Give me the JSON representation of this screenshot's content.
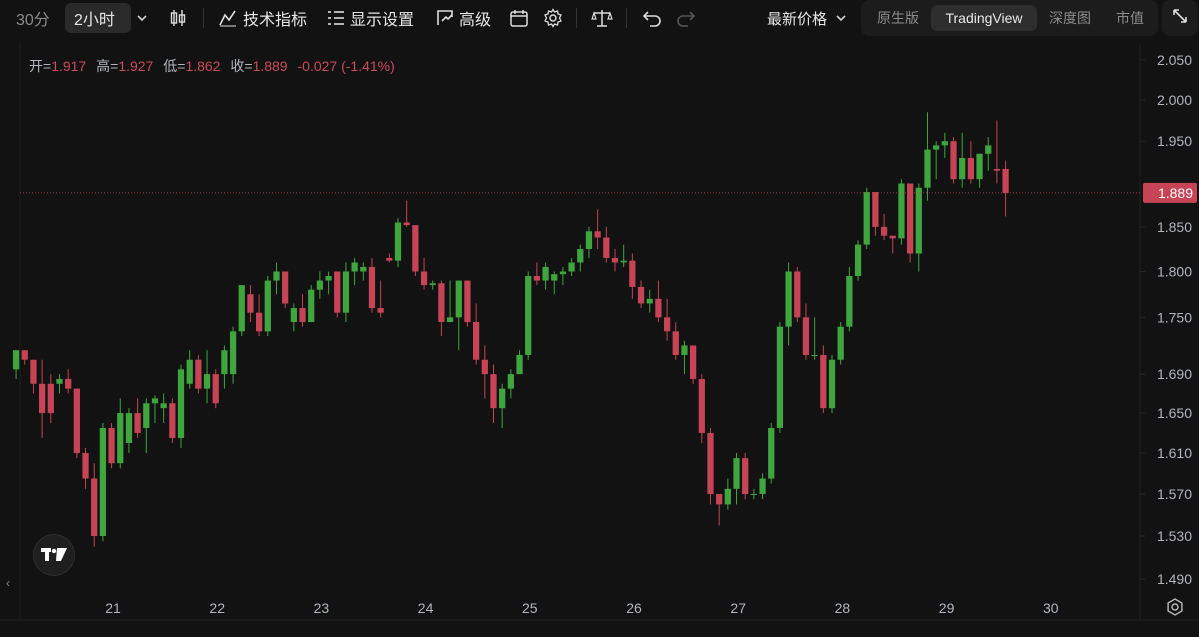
{
  "toolbar": {
    "tf_30m": "30分",
    "tf_2h": "2小时",
    "indicators": "技术指标",
    "display_settings": "显示设置",
    "advanced": "高级",
    "price_mode": "最新价格",
    "views": [
      "原生版",
      "TradingView",
      "深度图",
      "市值"
    ],
    "active_view": "TradingView"
  },
  "ohlc": {
    "open_label": "开=",
    "open": "1.917",
    "high_label": "高=",
    "high": "1.927",
    "low_label": "低=",
    "low": "1.862",
    "close_label": "收=",
    "close": "1.889",
    "change": "-0.027",
    "change_pct": "(-1.41%)"
  },
  "colors": {
    "up": "#3fa53f",
    "down": "#c64455",
    "last_price_label_bg": "#c64455",
    "background": "#121212"
  },
  "price_axis": {
    "ticks": [
      "2.050",
      "2.000",
      "1.950",
      "1.850",
      "1.800",
      "1.750",
      "1.690",
      "1.650",
      "1.610",
      "1.570",
      "1.530",
      "1.490"
    ],
    "last_price": "1.889"
  },
  "time_axis": {
    "ticks": [
      "21",
      "22",
      "23",
      "24",
      "25",
      "26",
      "27",
      "28",
      "29",
      "30"
    ]
  },
  "chart_data": {
    "type": "candlestick",
    "interval": "2小时",
    "y_scale": "log",
    "ylim": [
      1.46,
      2.07
    ],
    "x_domain_days": [
      20.05,
      30.75
    ],
    "bar_days": 0.0833,
    "start_day": 20.07,
    "ohlc": [
      [
        1.695,
        1.715,
        1.685,
        1.715
      ],
      [
        1.715,
        1.715,
        1.7,
        1.705
      ],
      [
        1.705,
        1.705,
        1.67,
        1.68
      ],
      [
        1.68,
        1.705,
        1.625,
        1.65
      ],
      [
        1.68,
        1.69,
        1.64,
        1.65
      ],
      [
        1.68,
        1.69,
        1.67,
        1.685
      ],
      [
        1.685,
        1.695,
        1.67,
        1.675
      ],
      [
        1.675,
        1.675,
        1.605,
        1.61
      ],
      [
        1.61,
        1.615,
        1.575,
        1.585
      ],
      [
        1.585,
        1.6,
        1.52,
        1.53
      ],
      [
        1.53,
        1.64,
        1.525,
        1.635
      ],
      [
        1.635,
        1.64,
        1.595,
        1.6
      ],
      [
        1.6,
        1.665,
        1.595,
        1.65
      ],
      [
        1.62,
        1.655,
        1.61,
        1.65
      ],
      [
        1.65,
        1.665,
        1.625,
        1.63
      ],
      [
        1.635,
        1.665,
        1.61,
        1.66
      ],
      [
        1.66,
        1.668,
        1.64,
        1.665
      ],
      [
        1.655,
        1.67,
        1.64,
        1.66
      ],
      [
        1.66,
        1.665,
        1.62,
        1.625
      ],
      [
        1.625,
        1.7,
        1.615,
        1.695
      ],
      [
        1.68,
        1.715,
        1.675,
        1.705
      ],
      [
        1.705,
        1.71,
        1.67,
        1.675
      ],
      [
        1.675,
        1.715,
        1.66,
        1.69
      ],
      [
        1.69,
        1.695,
        1.655,
        1.66
      ],
      [
        1.69,
        1.72,
        1.675,
        1.715
      ],
      [
        1.69,
        1.74,
        1.68,
        1.735
      ],
      [
        1.735,
        1.785,
        1.73,
        1.785
      ],
      [
        1.775,
        1.785,
        1.745,
        1.755
      ],
      [
        1.755,
        1.775,
        1.73,
        1.735
      ],
      [
        1.735,
        1.795,
        1.73,
        1.79
      ],
      [
        1.79,
        1.81,
        1.775,
        1.8
      ],
      [
        1.8,
        1.8,
        1.76,
        1.765
      ],
      [
        1.745,
        1.765,
        1.735,
        1.76
      ],
      [
        1.76,
        1.775,
        1.74,
        1.745
      ],
      [
        1.745,
        1.785,
        1.745,
        1.78
      ],
      [
        1.78,
        1.8,
        1.77,
        1.79
      ],
      [
        1.79,
        1.8,
        1.775,
        1.795
      ],
      [
        1.8,
        1.8,
        1.75,
        1.755
      ],
      [
        1.755,
        1.81,
        1.745,
        1.8
      ],
      [
        1.8,
        1.815,
        1.785,
        1.81
      ],
      [
        1.8,
        1.81,
        1.79,
        1.805
      ],
      [
        1.805,
        1.815,
        1.755,
        1.76
      ],
      [
        1.76,
        1.79,
        1.75,
        1.755
      ],
      [
        1.815,
        1.82,
        1.81,
        1.812
      ],
      [
        1.812,
        1.86,
        1.805,
        1.855
      ],
      [
        1.855,
        1.88,
        1.85,
        1.852
      ],
      [
        1.852,
        1.852,
        1.795,
        1.8
      ],
      [
        1.8,
        1.815,
        1.78,
        1.785
      ],
      [
        1.785,
        1.79,
        1.78,
        1.787
      ],
      [
        1.787,
        1.79,
        1.73,
        1.745
      ],
      [
        1.745,
        1.79,
        1.745,
        1.75
      ],
      [
        1.75,
        1.79,
        1.715,
        1.79
      ],
      [
        1.79,
        1.79,
        1.74,
        1.745
      ],
      [
        1.745,
        1.765,
        1.7,
        1.705
      ],
      [
        1.705,
        1.72,
        1.665,
        1.69
      ],
      [
        1.69,
        1.7,
        1.64,
        1.655
      ],
      [
        1.655,
        1.68,
        1.635,
        1.675
      ],
      [
        1.675,
        1.695,
        1.665,
        1.69
      ],
      [
        1.69,
        1.715,
        1.69,
        1.71
      ],
      [
        1.71,
        1.8,
        1.705,
        1.795
      ],
      [
        1.795,
        1.81,
        1.785,
        1.79
      ],
      [
        1.79,
        1.81,
        1.78,
        1.805
      ],
      [
        1.79,
        1.8,
        1.775,
        1.797
      ],
      [
        1.797,
        1.805,
        1.785,
        1.8
      ],
      [
        1.8,
        1.815,
        1.795,
        1.81
      ],
      [
        1.81,
        1.83,
        1.8,
        1.825
      ],
      [
        1.825,
        1.85,
        1.815,
        1.845
      ],
      [
        1.845,
        1.87,
        1.825,
        1.838
      ],
      [
        1.838,
        1.85,
        1.81,
        1.815
      ],
      [
        1.815,
        1.825,
        1.8,
        1.81
      ],
      [
        1.81,
        1.83,
        1.805,
        1.812
      ],
      [
        1.812,
        1.82,
        1.77,
        1.783
      ],
      [
        1.783,
        1.79,
        1.76,
        1.765
      ],
      [
        1.765,
        1.78,
        1.755,
        1.77
      ],
      [
        1.77,
        1.79,
        1.745,
        1.75
      ],
      [
        1.75,
        1.77,
        1.725,
        1.735
      ],
      [
        1.735,
        1.745,
        1.705,
        1.71
      ],
      [
        1.71,
        1.725,
        1.69,
        1.72
      ],
      [
        1.72,
        1.72,
        1.68,
        1.685
      ],
      [
        1.685,
        1.69,
        1.62,
        1.63
      ],
      [
        1.63,
        1.635,
        1.56,
        1.57
      ],
      [
        1.57,
        1.57,
        1.54,
        1.56
      ],
      [
        1.56,
        1.585,
        1.555,
        1.575
      ],
      [
        1.575,
        1.61,
        1.56,
        1.605
      ],
      [
        1.605,
        1.61,
        1.565,
        1.57
      ],
      [
        1.57,
        1.575,
        1.565,
        1.57
      ],
      [
        1.57,
        1.59,
        1.565,
        1.585
      ],
      [
        1.585,
        1.64,
        1.58,
        1.635
      ],
      [
        1.635,
        1.745,
        1.63,
        1.74
      ],
      [
        1.74,
        1.81,
        1.72,
        1.8
      ],
      [
        1.8,
        1.805,
        1.745,
        1.75
      ],
      [
        1.75,
        1.765,
        1.705,
        1.71
      ],
      [
        1.71,
        1.75,
        1.705,
        1.71
      ],
      [
        1.71,
        1.72,
        1.65,
        1.655
      ],
      [
        1.655,
        1.71,
        1.65,
        1.705
      ],
      [
        1.705,
        1.745,
        1.7,
        1.74
      ],
      [
        1.74,
        1.805,
        1.735,
        1.795
      ],
      [
        1.795,
        1.835,
        1.79,
        1.83
      ],
      [
        1.83,
        1.895,
        1.825,
        1.89
      ],
      [
        1.89,
        1.89,
        1.84,
        1.85
      ],
      [
        1.85,
        1.865,
        1.835,
        1.84
      ],
      [
        1.84,
        1.84,
        1.82,
        1.837
      ],
      [
        1.837,
        1.905,
        1.83,
        1.9
      ],
      [
        1.9,
        1.9,
        1.81,
        1.82
      ],
      [
        1.82,
        1.9,
        1.8,
        1.895
      ],
      [
        1.895,
        1.985,
        1.88,
        1.94
      ],
      [
        1.94,
        1.95,
        1.905,
        1.945
      ],
      [
        1.945,
        1.96,
        1.93,
        1.95
      ],
      [
        1.95,
        1.955,
        1.9,
        1.905
      ],
      [
        1.905,
        1.96,
        1.895,
        1.93
      ],
      [
        1.93,
        1.95,
        1.9,
        1.905
      ],
      [
        1.905,
        1.935,
        1.895,
        1.935
      ],
      [
        1.935,
        1.955,
        1.915,
        1.945
      ],
      [
        1.917,
        1.975,
        1.9,
        1.915
      ],
      [
        1.917,
        1.927,
        1.862,
        1.889
      ]
    ]
  }
}
